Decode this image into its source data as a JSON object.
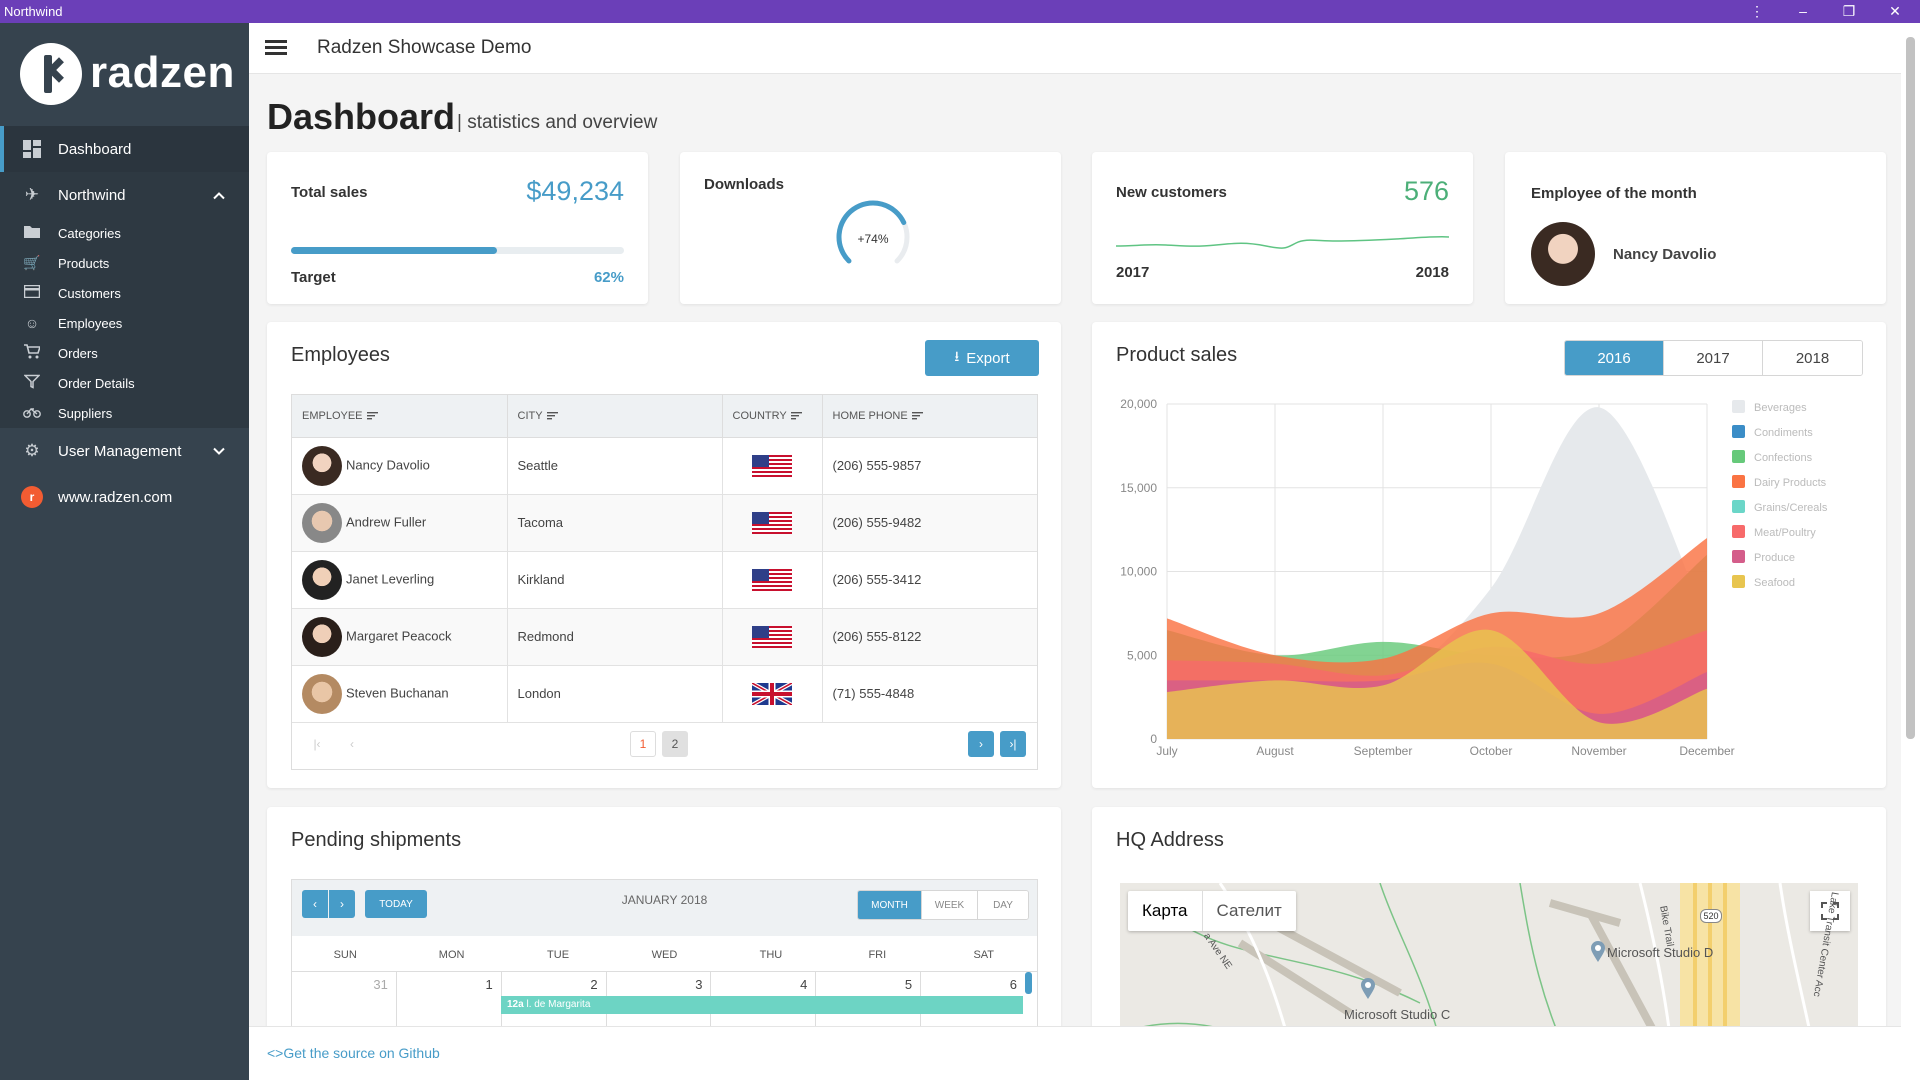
{
  "window": {
    "title": "Northwind",
    "menu_icon": "kebab-icon",
    "minimize_icon": "minimize-icon",
    "restore_icon": "restore-icon",
    "close_icon": "close-icon"
  },
  "sidebar": {
    "logo_text": "radzen",
    "dashboard": {
      "label": "Dashboard",
      "icon": "dashboard-icon"
    },
    "northwind": {
      "label": "Northwind",
      "icon": "plane-icon",
      "expanded": true,
      "items": [
        {
          "label": "Categories",
          "icon": "folder-icon"
        },
        {
          "label": "Products",
          "icon": "cart-add-icon"
        },
        {
          "label": "Customers",
          "icon": "card-icon"
        },
        {
          "label": "Employees",
          "icon": "face-icon"
        },
        {
          "label": "Orders",
          "icon": "cart-icon"
        },
        {
          "label": "Order Details",
          "icon": "filter-icon"
        },
        {
          "label": "Suppliers",
          "icon": "bike-icon"
        }
      ]
    },
    "user_management": {
      "label": "User Management",
      "icon": "gear-icon"
    },
    "website": {
      "label": "www.radzen.com",
      "icon": "radzen-logo-icon"
    }
  },
  "header": {
    "title": "Radzen Showcase Demo",
    "menu_icon": "hamburger-icon"
  },
  "page": {
    "title": "Dashboard",
    "subtitle": "| statistics and overview"
  },
  "total_sales": {
    "label": "Total sales",
    "value": "$49,234",
    "target_label": "Target",
    "target_percent": "62%",
    "progress": 0.62
  },
  "downloads": {
    "label": "Downloads",
    "gauge_text": "+74%",
    "gauge_fraction": 0.74
  },
  "new_customers": {
    "label": "New customers",
    "value": "576",
    "year_start": "2017",
    "year_end": "2018"
  },
  "employee_of_month": {
    "label": "Employee of the month",
    "name": "Nancy Davolio"
  },
  "employees": {
    "title": "Employees",
    "export_label": "Export",
    "columns": [
      "EMPLOYEE",
      "CITY",
      "COUNTRY",
      "HOME PHONE"
    ],
    "rows": [
      {
        "name": "Nancy Davolio",
        "city": "Seattle",
        "country_flag": "us-flag",
        "phone": "(206) 555-9857"
      },
      {
        "name": "Andrew Fuller",
        "city": "Tacoma",
        "country_flag": "us-flag",
        "phone": "(206) 555-9482"
      },
      {
        "name": "Janet Leverling",
        "city": "Kirkland",
        "country_flag": "us-flag",
        "phone": "(206) 555-3412"
      },
      {
        "name": "Margaret Peacock",
        "city": "Redmond",
        "country_flag": "us-flag",
        "phone": "(206) 555-8122"
      },
      {
        "name": "Steven Buchanan",
        "city": "London",
        "country_flag": "uk-flag",
        "phone": "(71) 555-4848"
      }
    ],
    "pages": [
      "1",
      "2"
    ],
    "current_page": "1"
  },
  "product_sales": {
    "title": "Product sales",
    "years": [
      "2016",
      "2017",
      "2018"
    ],
    "selected_year": "2016"
  },
  "chart_data": {
    "type": "area",
    "categories": [
      "July",
      "August",
      "September",
      "October",
      "November",
      "December"
    ],
    "ylim": [
      0,
      20000
    ],
    "yticks": [
      "0",
      "5,000",
      "10,000",
      "15,000",
      "20,000"
    ],
    "grid": true,
    "legend_position": "right",
    "series": [
      {
        "name": "Beverages",
        "color": "#e6e9ec",
        "values": [
          2000,
          2500,
          3000,
          9000,
          19800,
          7000
        ]
      },
      {
        "name": "Condiments",
        "color": "#3b8dc7",
        "values": [
          0,
          0,
          0,
          0,
          0,
          0
        ]
      },
      {
        "name": "Confections",
        "color": "#66c97a",
        "values": [
          6500,
          5000,
          5800,
          5000,
          5500,
          11000
        ]
      },
      {
        "name": "Dairy Products",
        "color": "#fa7343",
        "values": [
          7200,
          5000,
          4800,
          7500,
          7500,
          12000
        ]
      },
      {
        "name": "Grains/Cereals",
        "color": "#6bd6c8",
        "values": [
          0,
          0,
          0,
          0,
          0,
          0
        ]
      },
      {
        "name": "Meat/Poultry",
        "color": "#f76a6a",
        "values": [
          4700,
          4500,
          3800,
          5500,
          4500,
          6500
        ]
      },
      {
        "name": "Produce",
        "color": "#d45d8a",
        "values": [
          3500,
          3500,
          3500,
          4500,
          1500,
          4000
        ]
      },
      {
        "name": "Seafood",
        "color": "#e8c54f",
        "values": [
          2800,
          3500,
          3200,
          6500,
          1000,
          3000
        ]
      }
    ]
  },
  "pending_shipments": {
    "title": "Pending shipments",
    "today_label": "TODAY",
    "month_label": "JANUARY 2018",
    "views": [
      "MONTH",
      "WEEK",
      "DAY"
    ],
    "selected_view": "MONTH",
    "weekdays": [
      "SUN",
      "MON",
      "TUE",
      "WED",
      "THU",
      "FRI",
      "SAT"
    ],
    "dates": [
      "31",
      "1",
      "2",
      "3",
      "4",
      "5",
      "6"
    ],
    "event": {
      "time": "12a",
      "text": "l. de Margarita"
    }
  },
  "hq_address": {
    "title": "HQ Address",
    "map_tab": "Карта",
    "satellite_tab": "Сателит",
    "places": [
      "Microsoft Studio D",
      "Microsoft Studio C"
    ],
    "streets": [
      "Bike Trail",
      "a Ave NE",
      "Lake Transit Center Acc"
    ],
    "route": "520"
  },
  "footer": {
    "link": "<>Get the source on Github"
  }
}
